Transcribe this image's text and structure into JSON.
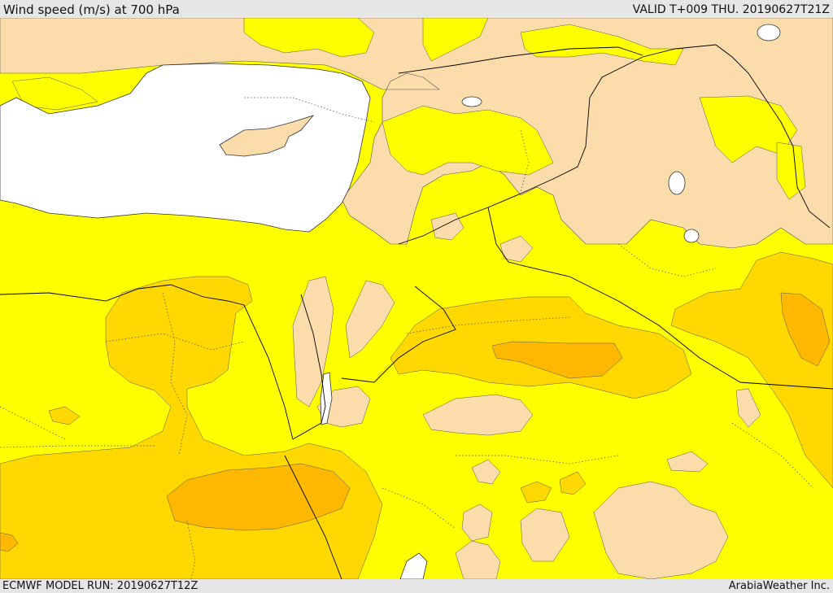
{
  "header": {
    "title": "Wind speed (m/s) at 700 hPa",
    "valid": "VALID T+009 THU. 20190627T21Z"
  },
  "footer": {
    "model_run": "ECMWF MODEL RUN: 20190627T12Z",
    "credit": "ArabiaWeather Inc."
  },
  "colors": {
    "sea": "#ffffff",
    "wind_lt_5": "#fcdcaa",
    "wind_5_10": "#ffff00",
    "wind_10_15": "#ffd800",
    "wind_15_20": "#ffb800",
    "border": "#000000"
  },
  "map": {
    "field": "wind_speed",
    "level": "700 hPa",
    "units": "m/s",
    "legend": "none"
  }
}
